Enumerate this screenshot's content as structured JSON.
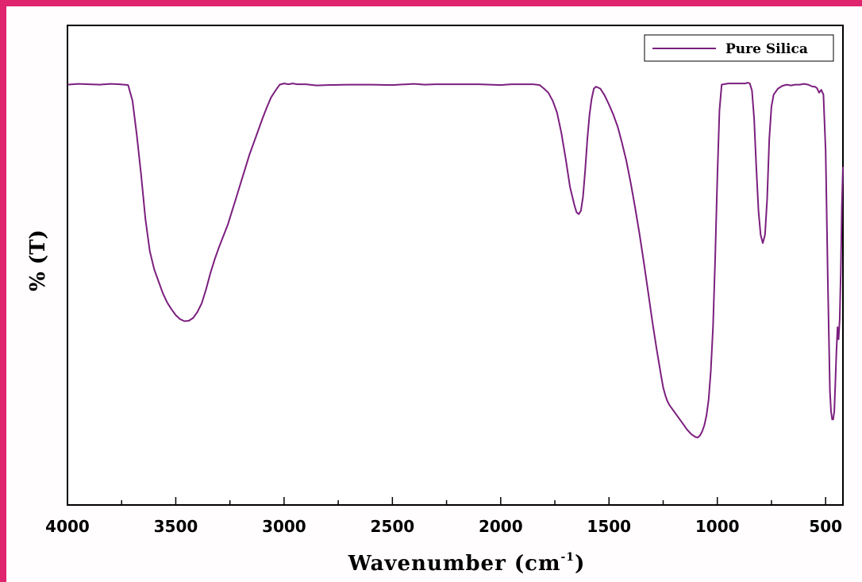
{
  "colors": {
    "frame": "#e0246e",
    "series": "#7b1f7e"
  },
  "chart_data": {
    "type": "line",
    "title": "",
    "xlabel": "Wavenumber (cm",
    "xlabel_sup": "-1",
    "xlabel_close": ")",
    "ylabel": "% (T)",
    "xlim": [
      4000,
      420
    ],
    "ylim": [
      0,
      100
    ],
    "x_reversed": true,
    "y_ticks_shown": false,
    "grid": false,
    "legend_position": "top-right",
    "x_ticks": [
      4000,
      3500,
      3000,
      2500,
      2000,
      1500,
      1000,
      500
    ],
    "x_tick_labels": [
      "4000",
      "3500",
      "3000",
      "2500",
      "2000",
      "1500",
      "1000",
      "500"
    ],
    "series": [
      {
        "name": "Pure Silica",
        "color": "#7b1f7e",
        "x": [
          4000,
          3950,
          3900,
          3850,
          3800,
          3760,
          3740,
          3720,
          3700,
          3680,
          3660,
          3640,
          3620,
          3600,
          3580,
          3560,
          3540,
          3520,
          3500,
          3480,
          3460,
          3440,
          3420,
          3400,
          3380,
          3360,
          3340,
          3320,
          3300,
          3280,
          3260,
          3240,
          3220,
          3200,
          3180,
          3160,
          3140,
          3120,
          3100,
          3080,
          3060,
          3040,
          3020,
          3000,
          2980,
          2960,
          2940,
          2900,
          2850,
          2800,
          2700,
          2600,
          2500,
          2400,
          2350,
          2300,
          2200,
          2100,
          2000,
          1950,
          1900,
          1850,
          1820,
          1800,
          1780,
          1760,
          1740,
          1720,
          1700,
          1680,
          1660,
          1650,
          1640,
          1630,
          1620,
          1610,
          1600,
          1590,
          1580,
          1570,
          1560,
          1540,
          1520,
          1500,
          1480,
          1460,
          1440,
          1420,
          1400,
          1380,
          1360,
          1340,
          1320,
          1300,
          1280,
          1260,
          1250,
          1240,
          1230,
          1220,
          1200,
          1180,
          1160,
          1140,
          1120,
          1100,
          1090,
          1080,
          1070,
          1060,
          1050,
          1040,
          1030,
          1020,
          1010,
          1000,
          990,
          980,
          950,
          900,
          870,
          860,
          850,
          840,
          830,
          820,
          810,
          800,
          790,
          780,
          770,
          760,
          750,
          740,
          720,
          700,
          680,
          660,
          640,
          620,
          600,
          580,
          560,
          550,
          540,
          530,
          520,
          510,
          500,
          490,
          480,
          475,
          470,
          465,
          460,
          455,
          450,
          445,
          440,
          435,
          430,
          425,
          420
        ],
        "y": [
          98.5,
          98.7,
          98.6,
          98.5,
          98.7,
          98.6,
          98.5,
          98.4,
          94.5,
          86.0,
          76.0,
          65.0,
          57.0,
          52.5,
          49.5,
          46.5,
          44.2,
          42.5,
          41.0,
          40.0,
          39.5,
          39.6,
          40.3,
          41.8,
          44.0,
          47.5,
          51.5,
          55.0,
          58.0,
          60.8,
          63.5,
          67.0,
          70.5,
          74.0,
          77.5,
          81.0,
          84.0,
          87.0,
          90.0,
          92.8,
          95.3,
          97.0,
          98.5,
          98.8,
          98.6,
          98.8,
          98.6,
          98.6,
          98.3,
          98.4,
          98.5,
          98.5,
          98.4,
          98.7,
          98.5,
          98.6,
          98.6,
          98.6,
          98.4,
          98.6,
          98.6,
          98.6,
          98.4,
          97.5,
          96.5,
          94.5,
          91.5,
          86.5,
          80.0,
          73.0,
          68.5,
          66.7,
          66.2,
          67.0,
          70.5,
          77.0,
          85.0,
          91.0,
          95.0,
          97.5,
          98.0,
          97.5,
          95.8,
          93.5,
          91.0,
          88.0,
          84.0,
          79.5,
          74.0,
          68.0,
          61.5,
          54.5,
          47.0,
          39.5,
          32.5,
          26.0,
          23.0,
          21.0,
          19.5,
          18.5,
          17.0,
          15.5,
          14.0,
          12.5,
          11.3,
          10.6,
          10.5,
          11.0,
          12.0,
          13.5,
          16.0,
          20.0,
          27.0,
          38.0,
          55.0,
          75.0,
          92.0,
          98.5,
          98.8,
          98.8,
          98.8,
          99.0,
          98.8,
          97.0,
          90.0,
          78.0,
          67.0,
          61.0,
          59.0,
          61.0,
          70.0,
          85.0,
          93.0,
          96.0,
          97.5,
          98.2,
          98.5,
          98.3,
          98.5,
          98.5,
          98.7,
          98.5,
          98.0,
          98.0,
          97.6,
          96.5,
          97.2,
          96.0,
          82.0,
          50.0,
          22.0,
          17.0,
          15.0,
          15.0,
          17.0,
          24.0,
          32.0,
          38.0,
          35.0,
          40.0,
          52.0,
          68.0,
          78.0
        ]
      }
    ]
  }
}
